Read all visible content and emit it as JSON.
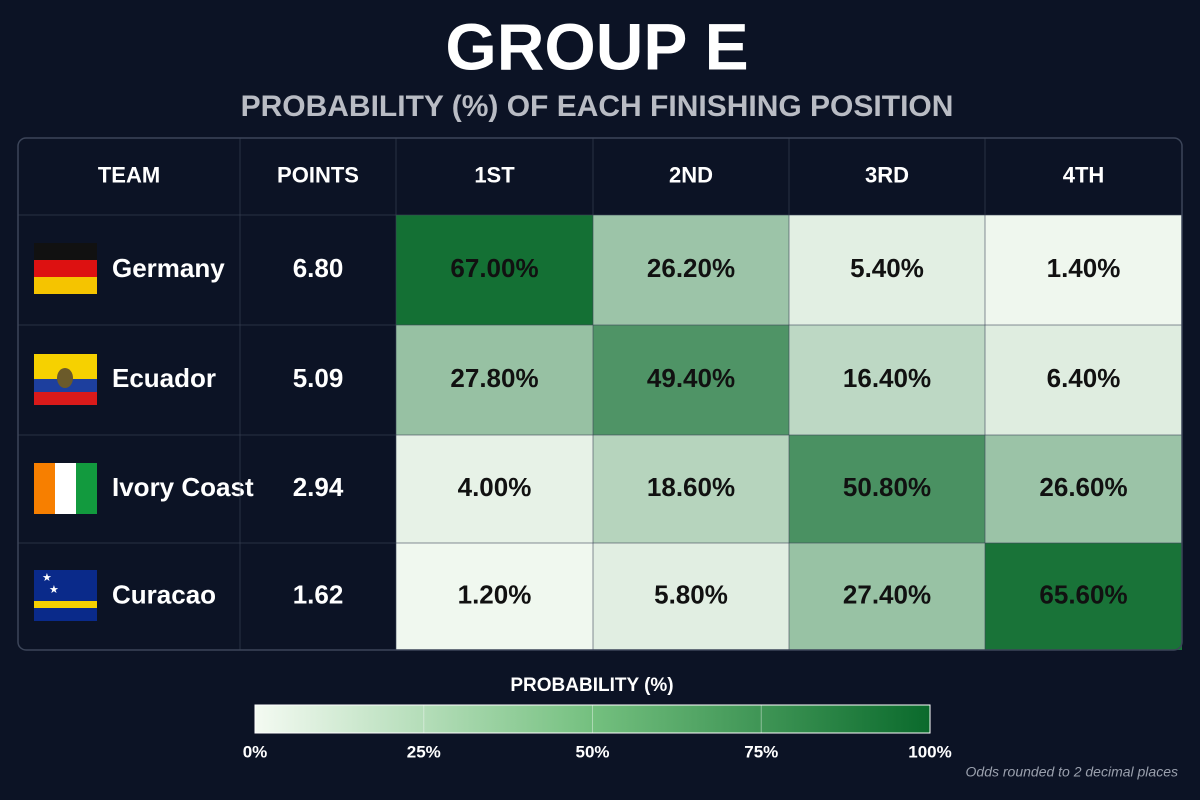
{
  "header": {
    "title": "GROUP E",
    "subtitle": "PROBABILITY (%) OF EACH FINISHING POSITION"
  },
  "table": {
    "columns": [
      "TEAM",
      "POINTS",
      "1ST",
      "2ND",
      "3RD",
      "4TH"
    ],
    "rows": [
      [
        "Germany",
        "6.80",
        "67.00%",
        "26.20%",
        "5.40%",
        "1.40%"
      ],
      [
        "Ecuador",
        "5.09",
        "27.80%",
        "49.40%",
        "16.40%",
        "6.40%"
      ],
      [
        "Ivory Coast",
        "2.94",
        "4.00%",
        "18.60%",
        "50.80%",
        "26.60%"
      ],
      [
        "Curacao",
        "1.62",
        "1.20%",
        "5.80%",
        "27.40%",
        "65.60%"
      ]
    ]
  },
  "legend": {
    "title": "PROBABILITY (%)",
    "ticks": [
      "0%",
      "25%",
      "50%",
      "75%",
      "100%"
    ]
  },
  "footnote": "Odds rounded to 2 decimal places"
}
